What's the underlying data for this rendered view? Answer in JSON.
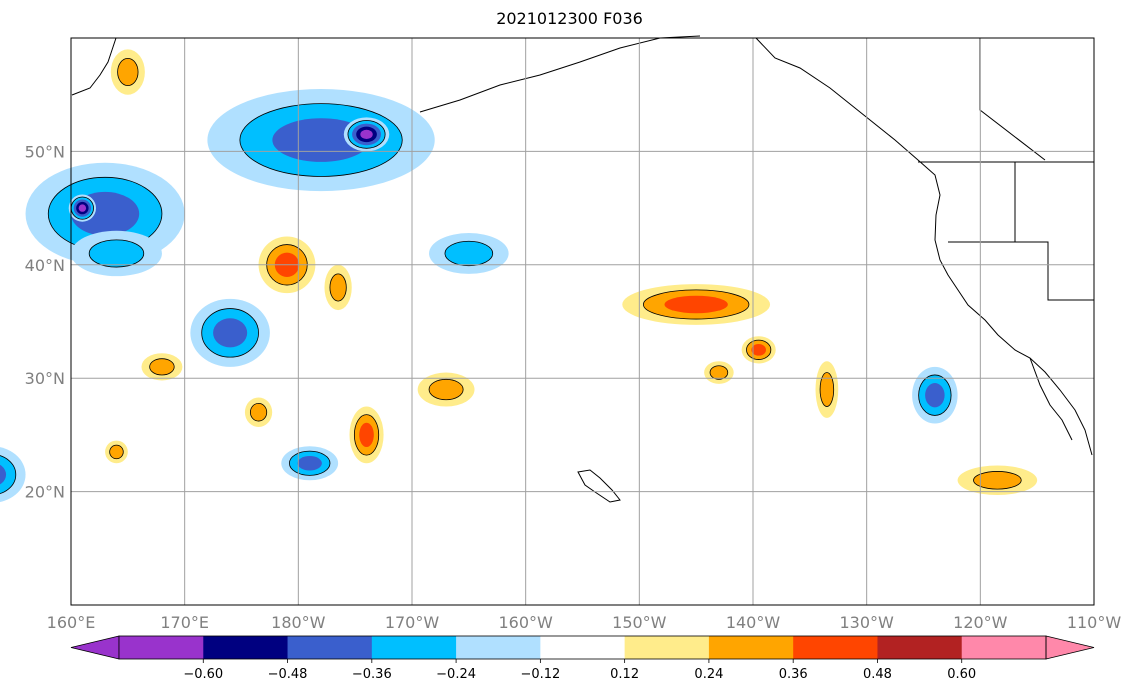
{
  "title": "2021012300 F036",
  "map": {
    "projection": "PlateCarree",
    "lon_range": [
      160,
      250
    ],
    "lat_range": [
      10,
      60
    ],
    "lon_ticks": [
      {
        "value": 160,
        "label": "160°E"
      },
      {
        "value": 170,
        "label": "170°E"
      },
      {
        "value": 180,
        "label": "180°W"
      },
      {
        "value": 190,
        "label": "170°W"
      },
      {
        "value": 200,
        "label": "160°W"
      },
      {
        "value": 210,
        "label": "150°W"
      },
      {
        "value": 220,
        "label": "140°W"
      },
      {
        "value": 230,
        "label": "130°W"
      },
      {
        "value": 240,
        "label": "120°W"
      },
      {
        "value": 250,
        "label": "110°W"
      }
    ],
    "lat_ticks": [
      {
        "value": 20,
        "label": "20°N"
      },
      {
        "value": 30,
        "label": "30°N"
      },
      {
        "value": 40,
        "label": "40°N"
      },
      {
        "value": 50,
        "label": "50°N"
      }
    ],
    "gridlines": true,
    "grid_color": "#a0a0a0"
  },
  "colorbar": {
    "orientation": "horizontal",
    "extend": "both",
    "levels": [
      -0.6,
      -0.48,
      -0.36,
      -0.24,
      -0.12,
      0.12,
      0.24,
      0.36,
      0.48,
      0.6
    ],
    "labels": [
      "−0.60",
      "−0.48",
      "−0.36",
      "−0.24",
      "−0.12",
      "0.12",
      "0.24",
      "0.36",
      "0.48",
      "0.60"
    ],
    "colors": [
      "#9933cc",
      "#000080",
      "#3a5fcd",
      "#00bfff",
      "#b0e0ff",
      "#ffffff",
      "#ffec8b",
      "#ffa500",
      "#ff4500",
      "#b22222",
      "#ff88aa"
    ]
  },
  "anomaly_blobs": [
    {
      "lon": 182,
      "lat": 51,
      "rx": 10,
      "ry": 4.5,
      "level": -0.36
    },
    {
      "lon": 186,
      "lat": 51.5,
      "rx": 2,
      "ry": 1.5,
      "level": -0.6
    },
    {
      "lon": 163,
      "lat": 44.5,
      "rx": 7,
      "ry": 4.5,
      "level": -0.36
    },
    {
      "lon": 161,
      "lat": 45,
      "rx": 1.2,
      "ry": 1.2,
      "level": -0.6
    },
    {
      "lon": 174,
      "lat": 34,
      "rx": 3.5,
      "ry": 3,
      "level": -0.36
    },
    {
      "lon": 164,
      "lat": 41,
      "rx": 4,
      "ry": 2,
      "level": -0.24
    },
    {
      "lon": 195,
      "lat": 41,
      "rx": 3.5,
      "ry": 1.8,
      "level": -0.24
    },
    {
      "lon": 153,
      "lat": 21.5,
      "rx": 3,
      "ry": 2.5,
      "level": -0.36
    },
    {
      "lon": 236,
      "lat": 28.5,
      "rx": 2,
      "ry": 2.5,
      "level": -0.36
    },
    {
      "lon": 181,
      "lat": 22.5,
      "rx": 2.5,
      "ry": 1.5,
      "level": -0.36
    },
    {
      "lon": 179,
      "lat": 40,
      "rx": 2.5,
      "ry": 2.5,
      "level": 0.36
    },
    {
      "lon": 215,
      "lat": 36.5,
      "rx": 6.5,
      "ry": 1.8,
      "level": 0.36
    },
    {
      "lon": 220.5,
      "lat": 32.5,
      "rx": 1.5,
      "ry": 1.2,
      "level": 0.36
    },
    {
      "lon": 186,
      "lat": 25,
      "rx": 1.5,
      "ry": 2.5,
      "level": 0.36
    },
    {
      "lon": 241.5,
      "lat": 21,
      "rx": 3.5,
      "ry": 1.3,
      "level": 0.24
    },
    {
      "lon": 168,
      "lat": 31,
      "rx": 1.8,
      "ry": 1.2,
      "level": 0.24
    },
    {
      "lon": 193,
      "lat": 29,
      "rx": 2.5,
      "ry": 1.5,
      "level": 0.24
    },
    {
      "lon": 217,
      "lat": 30.5,
      "rx": 1.3,
      "ry": 1,
      "level": 0.24
    },
    {
      "lon": 226.5,
      "lat": 29,
      "rx": 1,
      "ry": 2.5,
      "level": 0.24
    },
    {
      "lon": 165,
      "lat": 57,
      "rx": 1.5,
      "ry": 2,
      "level": 0.24
    },
    {
      "lon": 176.5,
      "lat": 27,
      "rx": 1.2,
      "ry": 1.3,
      "level": 0.24
    },
    {
      "lon": 164,
      "lat": 23.5,
      "rx": 1,
      "ry": 1,
      "level": 0.24
    },
    {
      "lon": 183.5,
      "lat": 38,
      "rx": 1.2,
      "ry": 2,
      "level": 0.24
    }
  ]
}
